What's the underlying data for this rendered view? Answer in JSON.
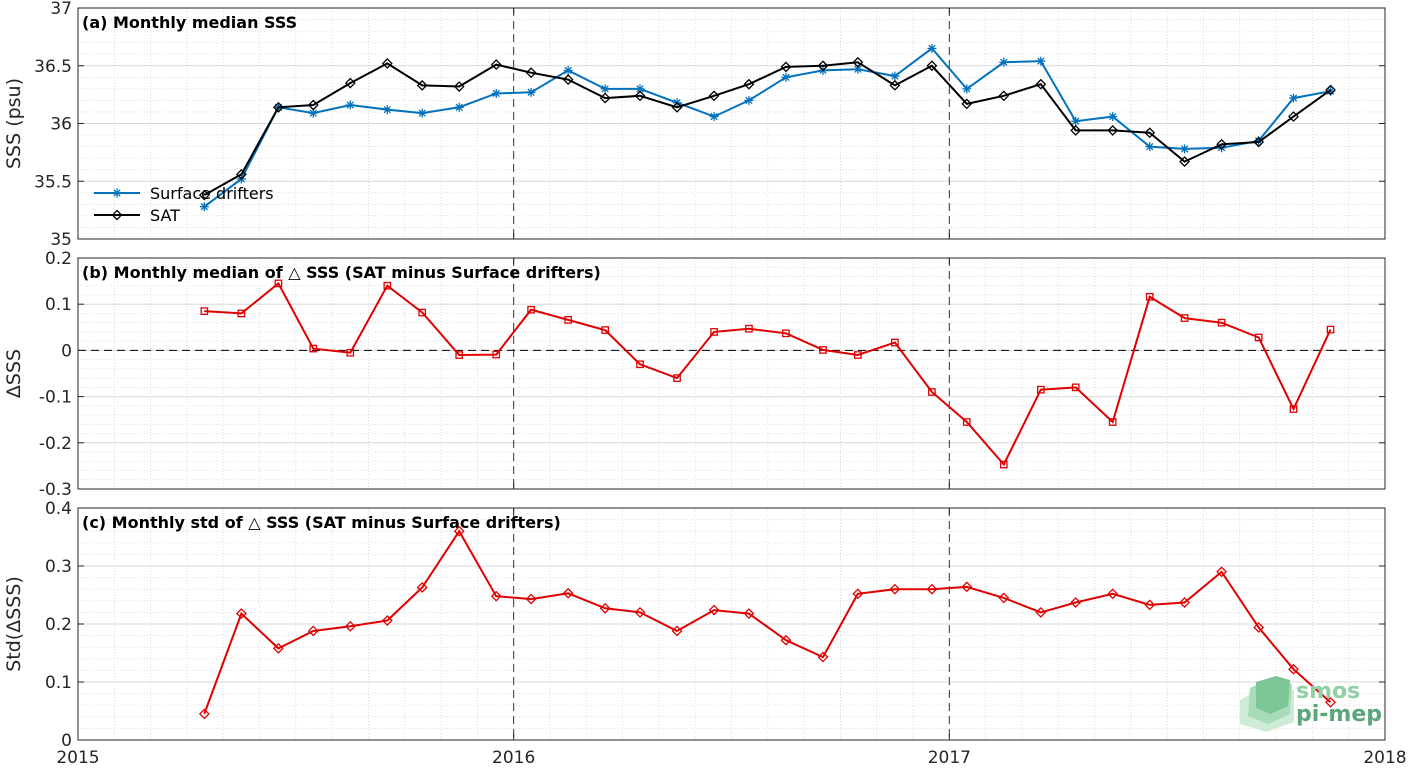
{
  "x_axis": {
    "range": [
      2015,
      2018
    ],
    "ticks": [
      "2015",
      "2016",
      "2017",
      "2018"
    ],
    "dashed_year_lines": [
      2016,
      2017
    ]
  },
  "colors": {
    "drifters": "#0072bd",
    "sat": "#000000",
    "delta": "#e00000",
    "grid": "#d9d9d9"
  },
  "logo": {
    "line1": "smos",
    "line2": "pi-mep"
  },
  "chart_data": [
    {
      "type": "line",
      "title": "(a) Monthly median SSS",
      "ylabel": "SSS (psu)",
      "ylim": [
        35,
        37
      ],
      "yticks": [
        "35",
        "35.5",
        "36",
        "36.5",
        "37"
      ],
      "legend": {
        "position": "bottom-left",
        "entries": [
          "Surface drifters",
          "SAT"
        ]
      },
      "x": [
        2015.29,
        2015.375,
        2015.46,
        2015.54,
        2015.625,
        2015.71,
        2015.79,
        2015.875,
        2015.96,
        2016.04,
        2016.125,
        2016.21,
        2016.29,
        2016.375,
        2016.46,
        2016.54,
        2016.625,
        2016.71,
        2016.79,
        2016.875,
        2016.96,
        2017.04,
        2017.125,
        2017.21,
        2017.29,
        2017.375,
        2017.46,
        2017.54,
        2017.625,
        2017.71,
        2017.79,
        2017.875
      ],
      "series": [
        {
          "name": "Surface drifters",
          "marker": "star",
          "values": [
            35.28,
            35.52,
            36.14,
            36.09,
            36.16,
            36.12,
            36.09,
            36.14,
            36.26,
            36.27,
            36.46,
            36.3,
            36.3,
            36.18,
            36.06,
            36.2,
            36.4,
            36.46,
            36.47,
            36.41,
            36.65,
            36.3,
            36.53,
            36.54,
            36.02,
            36.06,
            35.8,
            35.78,
            35.79,
            35.85,
            36.22,
            36.28
          ]
        },
        {
          "name": "SAT",
          "marker": "diamond",
          "values": [
            35.38,
            35.56,
            36.14,
            36.16,
            36.35,
            36.52,
            36.33,
            36.32,
            36.51,
            36.44,
            36.38,
            36.22,
            36.24,
            36.14,
            36.24,
            36.34,
            36.49,
            36.5,
            36.53,
            36.33,
            36.5,
            36.17,
            36.24,
            36.34,
            35.94,
            35.94,
            35.92,
            35.67,
            35.82,
            35.84,
            36.06,
            36.29
          ]
        }
      ]
    },
    {
      "type": "line",
      "title": "(b) Monthly median of △ SSS (SAT minus Surface drifters)",
      "ylabel": "ΔSSS",
      "ylim": [
        -0.3,
        0.2
      ],
      "yticks": [
        "-0.3",
        "-0.2",
        "-0.1",
        "0",
        "0.1",
        "0.2"
      ],
      "reference_line": 0,
      "x": [
        2015.29,
        2015.375,
        2015.46,
        2015.54,
        2015.625,
        2015.71,
        2015.79,
        2015.875,
        2015.96,
        2016.04,
        2016.125,
        2016.21,
        2016.29,
        2016.375,
        2016.46,
        2016.54,
        2016.625,
        2016.71,
        2016.79,
        2016.875,
        2016.96,
        2017.04,
        2017.125,
        2017.21,
        2017.29,
        2017.375,
        2017.46,
        2017.54,
        2017.625,
        2017.71,
        2017.79,
        2017.875
      ],
      "series": [
        {
          "marker": "square",
          "values": [
            0.085,
            0.08,
            0.145,
            0.004,
            -0.005,
            0.14,
            0.082,
            -0.01,
            -0.009,
            0.088,
            0.066,
            0.044,
            -0.03,
            -0.06,
            0.04,
            0.047,
            0.037,
            0.001,
            -0.01,
            0.017,
            -0.09,
            -0.155,
            -0.247,
            -0.085,
            -0.08,
            -0.155,
            0.116,
            0.07,
            0.06,
            0.028,
            -0.127,
            0.045
          ]
        }
      ]
    },
    {
      "type": "line",
      "title": "(c) Monthly std of △ SSS (SAT minus Surface drifters)",
      "ylabel": "Std(ΔSSS)",
      "ylim": [
        0,
        0.4
      ],
      "yticks": [
        "0",
        "0.1",
        "0.2",
        "0.3",
        "0.4"
      ],
      "x": [
        2015.29,
        2015.375,
        2015.46,
        2015.54,
        2015.625,
        2015.71,
        2015.79,
        2015.875,
        2015.96,
        2016.04,
        2016.125,
        2016.21,
        2016.29,
        2016.375,
        2016.46,
        2016.54,
        2016.625,
        2016.71,
        2016.79,
        2016.875,
        2016.96,
        2017.04,
        2017.125,
        2017.21,
        2017.29,
        2017.375,
        2017.46,
        2017.54,
        2017.625,
        2017.71,
        2017.79,
        2017.875
      ],
      "series": [
        {
          "marker": "diamond",
          "values": [
            0.045,
            0.218,
            0.158,
            0.188,
            0.196,
            0.206,
            0.263,
            0.36,
            0.248,
            0.243,
            0.253,
            0.227,
            0.22,
            0.188,
            0.224,
            0.218,
            0.172,
            0.143,
            0.252,
            0.26,
            0.26,
            0.264,
            0.245,
            0.22,
            0.237,
            0.252,
            0.233,
            0.237,
            0.29,
            0.194,
            0.122,
            0.065
          ]
        }
      ]
    }
  ]
}
